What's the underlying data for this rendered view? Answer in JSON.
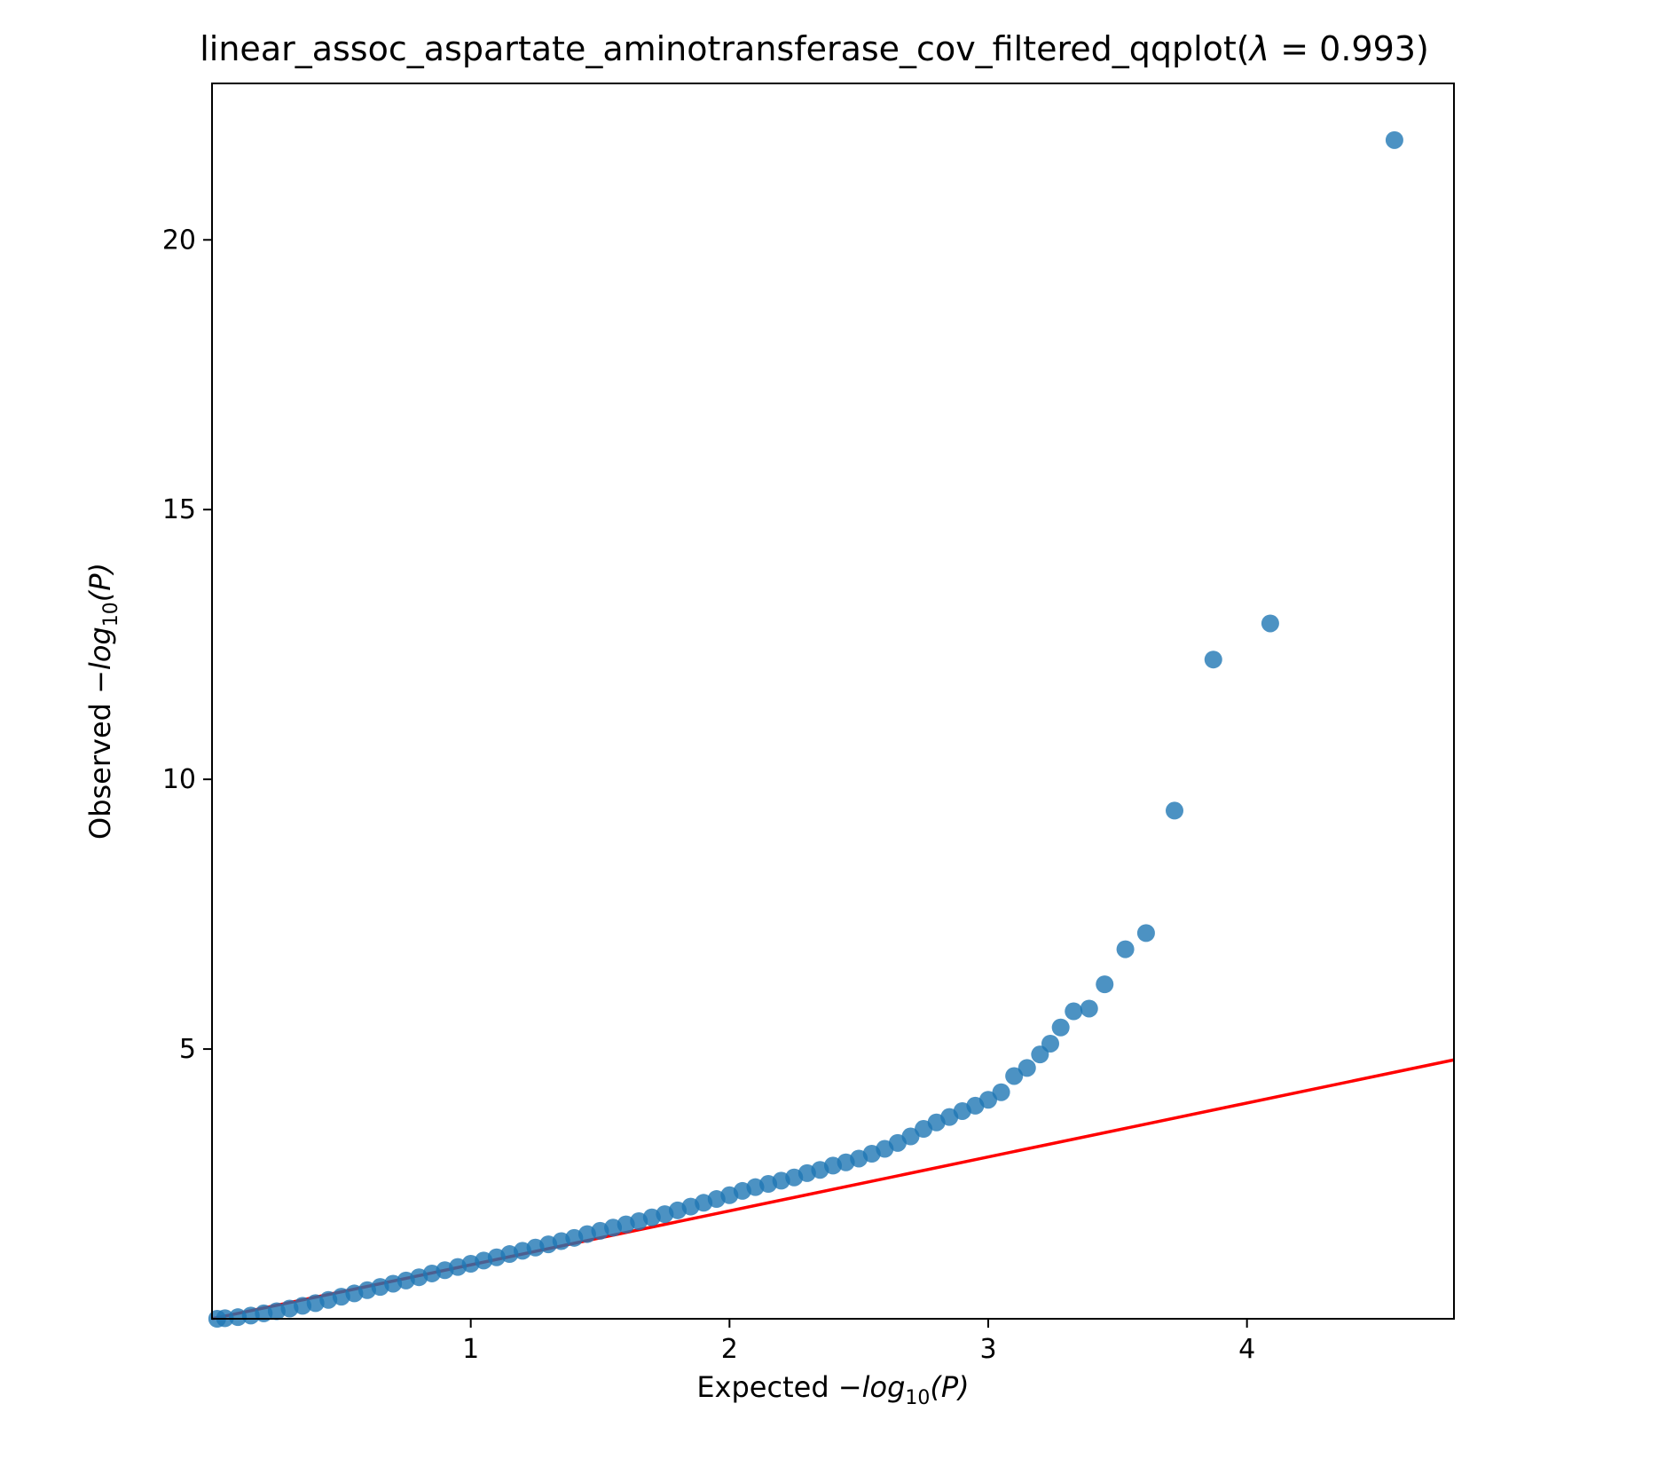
{
  "chart_data": {
    "type": "scatter",
    "title": "linear_assoc_aspartate_aminotransferase_cov_filtered_qqplot(λ = 0.993)",
    "title_parts": {
      "prefix": "linear_assoc_aspartate_aminotransferase_cov_filtered_qqplot(",
      "lambda_symbol": "λ",
      "equals": " = ",
      "lambda_value": "0.993",
      "suffix": ")"
    },
    "xlabel": {
      "prefix": "Expected −",
      "log": "log",
      "sub": "10",
      "suffix": "(P)"
    },
    "ylabel": {
      "prefix": "Observed −",
      "log": "log",
      "sub": "10",
      "suffix": "(P)"
    },
    "xlim": [
      0,
      4.8
    ],
    "ylim": [
      0,
      22.9
    ],
    "xticks": [
      {
        "value": 1,
        "label": "1"
      },
      {
        "value": 2,
        "label": "2"
      },
      {
        "value": 3,
        "label": "3"
      },
      {
        "value": 4,
        "label": "4"
      }
    ],
    "yticks": [
      {
        "value": 5,
        "label": "5"
      },
      {
        "value": 10,
        "label": "10"
      },
      {
        "value": 15,
        "label": "15"
      },
      {
        "value": 20,
        "label": "20"
      }
    ],
    "grid": false,
    "reference_line": {
      "name": "y = x",
      "color": "#ff0000",
      "slope": 1,
      "intercept": 0
    },
    "points_color": "#1f77b4",
    "points": [
      [
        0.02,
        0.0
      ],
      [
        0.05,
        0.01
      ],
      [
        0.1,
        0.03
      ],
      [
        0.15,
        0.06
      ],
      [
        0.2,
        0.1
      ],
      [
        0.25,
        0.14
      ],
      [
        0.3,
        0.19
      ],
      [
        0.35,
        0.24
      ],
      [
        0.4,
        0.29
      ],
      [
        0.45,
        0.35
      ],
      [
        0.5,
        0.41
      ],
      [
        0.55,
        0.47
      ],
      [
        0.6,
        0.53
      ],
      [
        0.65,
        0.59
      ],
      [
        0.7,
        0.65
      ],
      [
        0.75,
        0.71
      ],
      [
        0.8,
        0.77
      ],
      [
        0.85,
        0.84
      ],
      [
        0.9,
        0.9
      ],
      [
        0.95,
        0.96
      ],
      [
        1.0,
        1.02
      ],
      [
        1.05,
        1.08
      ],
      [
        1.1,
        1.14
      ],
      [
        1.15,
        1.2
      ],
      [
        1.2,
        1.26
      ],
      [
        1.25,
        1.32
      ],
      [
        1.3,
        1.38
      ],
      [
        1.35,
        1.44
      ],
      [
        1.4,
        1.5
      ],
      [
        1.45,
        1.57
      ],
      [
        1.5,
        1.63
      ],
      [
        1.55,
        1.69
      ],
      [
        1.6,
        1.75
      ],
      [
        1.65,
        1.81
      ],
      [
        1.7,
        1.88
      ],
      [
        1.75,
        1.94
      ],
      [
        1.8,
        2.01
      ],
      [
        1.85,
        2.08
      ],
      [
        1.9,
        2.15
      ],
      [
        1.95,
        2.22
      ],
      [
        2.0,
        2.29
      ],
      [
        2.05,
        2.37
      ],
      [
        2.1,
        2.44
      ],
      [
        2.15,
        2.5
      ],
      [
        2.2,
        2.56
      ],
      [
        2.25,
        2.62
      ],
      [
        2.3,
        2.7
      ],
      [
        2.35,
        2.76
      ],
      [
        2.4,
        2.84
      ],
      [
        2.45,
        2.9
      ],
      [
        2.5,
        2.97
      ],
      [
        2.55,
        3.06
      ],
      [
        2.6,
        3.15
      ],
      [
        2.65,
        3.26
      ],
      [
        2.7,
        3.38
      ],
      [
        2.75,
        3.52
      ],
      [
        2.8,
        3.64
      ],
      [
        2.85,
        3.74
      ],
      [
        2.9,
        3.85
      ],
      [
        2.95,
        3.95
      ],
      [
        3.0,
        4.06
      ],
      [
        3.05,
        4.2
      ],
      [
        3.1,
        4.5
      ],
      [
        3.15,
        4.65
      ],
      [
        3.2,
        4.9
      ],
      [
        3.24,
        5.1
      ],
      [
        3.28,
        5.4
      ],
      [
        3.33,
        5.7
      ],
      [
        3.39,
        5.75
      ],
      [
        3.45,
        6.2
      ],
      [
        3.53,
        6.85
      ],
      [
        3.61,
        7.15
      ],
      [
        3.72,
        9.42
      ],
      [
        3.87,
        12.22
      ],
      [
        4.09,
        12.89
      ],
      [
        4.57,
        21.85
      ]
    ]
  }
}
